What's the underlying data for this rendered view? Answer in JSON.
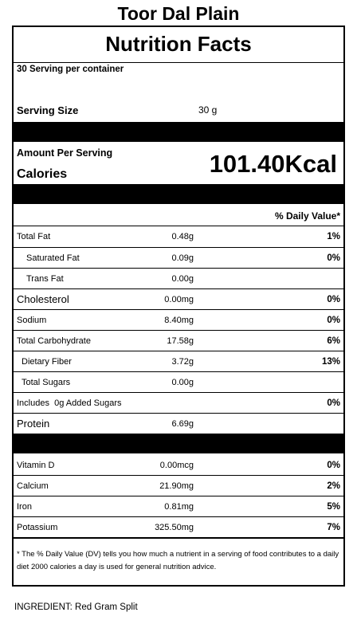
{
  "product": {
    "title": "Toor Dal Plain"
  },
  "label": {
    "heading": "Nutrition Facts",
    "servings_per_container": "30 Serving per container",
    "serving_size_label": "Serving Size",
    "serving_size_value": "30 g",
    "amount_per_serving": "Amount Per Serving",
    "calories_label": "Calories",
    "calories_value": "101.40Kcal",
    "daily_value_header": "% Daily Value*",
    "nutrients": [
      {
        "name": "Total Fat",
        "amount": "0.48g",
        "dv": "1%"
      },
      {
        "name": "Saturated Fat",
        "amount": "0.09g",
        "dv": "0%"
      },
      {
        "name": "Trans Fat",
        "amount": "0.00g",
        "dv": ""
      },
      {
        "name": "Cholesterol",
        "amount": "0.00mg",
        "dv": "0%"
      },
      {
        "name": "Sodium",
        "amount": "8.40mg",
        "dv": "0%"
      },
      {
        "name": "Total Carbohydrate",
        "amount": "17.58g",
        "dv": "6%"
      },
      {
        "name": "Dietary Fiber",
        "amount": "3.72g",
        "dv": "13%"
      },
      {
        "name": "Total Sugars",
        "amount": "0.00g",
        "dv": ""
      },
      {
        "name": "Includes  0g Added Sugars",
        "amount": "",
        "dv": "0%"
      },
      {
        "name": "Protein",
        "amount": "6.69g",
        "dv": ""
      }
    ],
    "minerals": [
      {
        "name": "Vitamin D",
        "amount": "0.00mcg",
        "dv": "0%"
      },
      {
        "name": "Calcium",
        "amount": "21.90mg",
        "dv": "2%"
      },
      {
        "name": "Iron",
        "amount": "0.81mg",
        "dv": "5%"
      },
      {
        "name": "Potassium",
        "amount": "325.50mg",
        "dv": "7%"
      }
    ],
    "footnote": "* The % Daily Value (DV) tells you how much a nutrient in a serving of food contributes to a daily diet 2000 calories a day is used for general nutrition advice."
  },
  "ingredients": "INGREDIENT: Red Gram Split"
}
